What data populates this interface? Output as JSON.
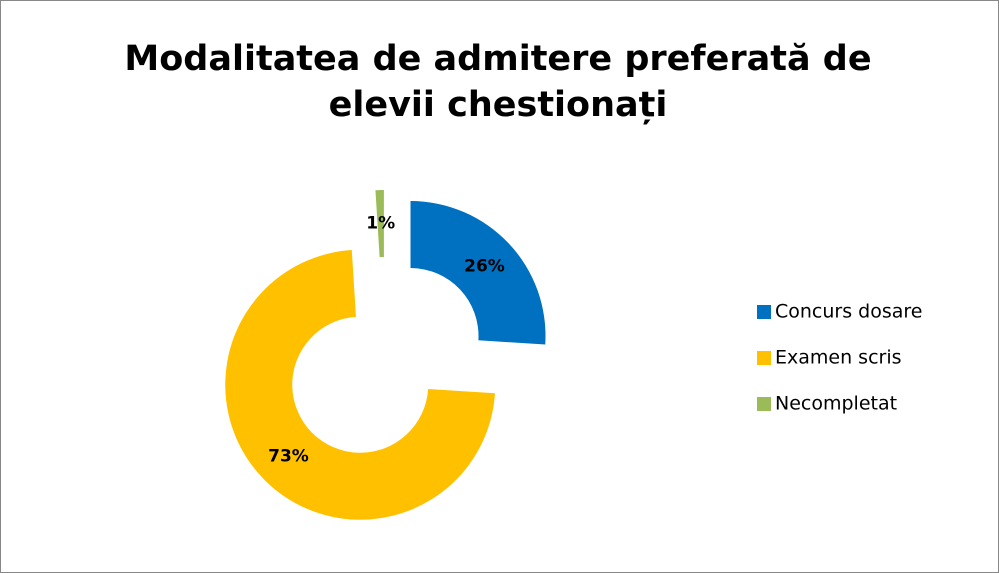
{
  "chart_data": {
    "type": "donut",
    "title": "Modalitatea de admitere preferată de elevii chestionați",
    "categories": [
      "Concurs dosare",
      "Examen scris",
      "Necompletat"
    ],
    "values": [
      26,
      73,
      1
    ],
    "value_labels": [
      "26%",
      "73%",
      "1%"
    ],
    "colors": [
      "#0070c0",
      "#ffc000",
      "#9bbb59"
    ],
    "legend": "right"
  }
}
